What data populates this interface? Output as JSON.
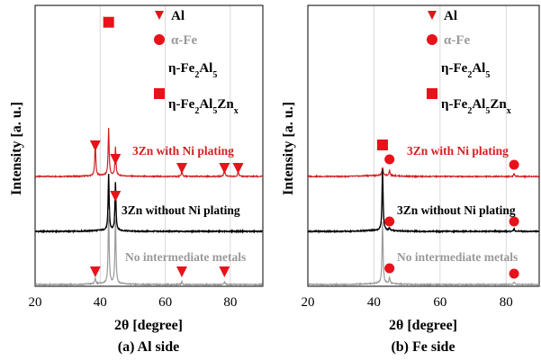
{
  "chart_data": [
    {
      "type": "line",
      "caption": "(a) Al side",
      "xlabel": "2θ [degree]",
      "ylabel": "Intensity [a. u.]",
      "xlim": [
        20,
        90
      ],
      "x_ticks": [
        20,
        40,
        60,
        80
      ],
      "legend": [
        {
          "marker": "triangle",
          "label": "Al"
        },
        {
          "marker": "circle",
          "label": "α-Fe"
        },
        {
          "marker": "none",
          "label": "η-Fe2Al5"
        },
        {
          "marker": "square",
          "label": "η-Fe2Al5Znx"
        }
      ],
      "series": [
        {
          "name": "3Zn with Ni plating",
          "color": "#d42020",
          "baseline": 0.45,
          "peaks": [
            [
              38.5,
              0.12
            ],
            [
              42.6,
              0.17
            ],
            [
              44.7,
              0.1
            ],
            [
              65.1,
              0.02
            ],
            [
              78.2,
              0.03
            ],
            [
              82.4,
              0.02
            ]
          ],
          "markers": [
            {
              "x": 38.5,
              "type": "triangle"
            },
            {
              "x": 44.7,
              "type": "triangle"
            },
            {
              "x": 65.1,
              "type": "triangle"
            },
            {
              "x": 78.2,
              "type": "triangle"
            },
            {
              "x": 82.4,
              "type": "triangle"
            }
          ]
        },
        {
          "name": "3Zn without Ni plating",
          "color": "#000000",
          "baseline": 0.225,
          "peaks": [
            [
              42.6,
              0.2
            ],
            [
              44.7,
              0.17
            ]
          ],
          "markers": [
            {
              "x": 44.7,
              "type": "triangle"
            }
          ]
        },
        {
          "name": "No intermediate metals",
          "color": "#9a9a9a",
          "baseline": 0.0,
          "peaks": [
            [
              38.5,
              0.02
            ],
            [
              42.6,
              0.26
            ],
            [
              44.7,
              0.24
            ],
            [
              65.1,
              0.01
            ],
            [
              78.2,
              0.01
            ]
          ],
          "markers": [
            {
              "x": 38.5,
              "type": "triangle"
            },
            {
              "x": 65.1,
              "type": "triangle"
            },
            {
              "x": 78.2,
              "type": "triangle"
            }
          ]
        }
      ],
      "extra_markers": [
        {
          "x": 42.6,
          "type": "square",
          "level": 0.94
        }
      ]
    },
    {
      "type": "line",
      "caption": "(b) Fe side",
      "xlabel": "2θ [degree]",
      "ylabel": "Intensity [a. u.]",
      "xlim": [
        20,
        90
      ],
      "x_ticks": [
        20,
        40,
        60,
        80
      ],
      "legend": [
        {
          "marker": "triangle",
          "label": "Al"
        },
        {
          "marker": "circle",
          "label": "α-Fe"
        },
        {
          "marker": "none",
          "label": "η-Fe2Al5"
        },
        {
          "marker": "square",
          "label": "η-Fe2Al5Znx"
        }
      ],
      "series": [
        {
          "name": "3Zn with Ni plating",
          "color": "#d42020",
          "baseline": 0.45,
          "peaks": [
            [
              42.6,
              0.03
            ],
            [
              44.7,
              0.02
            ],
            [
              82.4,
              0.01
            ]
          ],
          "markers": [
            {
              "x": 42.6,
              "type": "square"
            },
            {
              "x": 44.7,
              "type": "circle"
            },
            {
              "x": 82.4,
              "type": "circle"
            }
          ]
        },
        {
          "name": "3Zn without Ni plating",
          "color": "#000000",
          "baseline": 0.225,
          "peaks": [
            [
              42.6,
              0.22
            ],
            [
              44.7,
              0.01
            ],
            [
              82.4,
              0.01
            ]
          ],
          "markers": [
            {
              "x": 44.7,
              "type": "circle"
            },
            {
              "x": 82.4,
              "type": "circle"
            }
          ]
        },
        {
          "name": "No intermediate metals",
          "color": "#9a9a9a",
          "baseline": 0.0,
          "peaks": [
            [
              42.6,
              0.22
            ],
            [
              44.7,
              0.02
            ],
            [
              82.4,
              0.01
            ]
          ],
          "markers": [
            {
              "x": 44.7,
              "type": "circle"
            },
            {
              "x": 82.4,
              "type": "circle"
            }
          ]
        }
      ],
      "extra_markers": []
    }
  ],
  "colors": {
    "marker": "#e8121a",
    "with_ni": "#d42020",
    "without_ni": "#000000",
    "no_intermediate": "#9a9a9a",
    "grid": "#d9d9d9"
  }
}
